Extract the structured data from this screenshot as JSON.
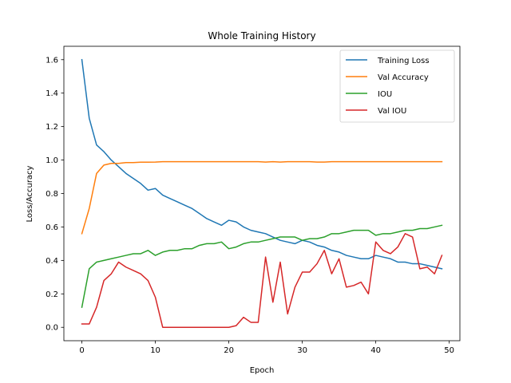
{
  "chart_data": {
    "type": "line",
    "title": "Whole Training History",
    "xlabel": "Epoch",
    "ylabel": "Loss/Accuracy",
    "xlim": [
      -2.45,
      51.45
    ],
    "ylim": [
      -0.08,
      1.68
    ],
    "xticks": [
      0,
      10,
      20,
      30,
      40,
      50
    ],
    "yticks": [
      0.0,
      0.2,
      0.4,
      0.6,
      0.8,
      1.0,
      1.2,
      1.4,
      1.6
    ],
    "grid": false,
    "legend_position": "top-right",
    "x": [
      0,
      1,
      2,
      3,
      4,
      5,
      6,
      7,
      8,
      9,
      10,
      11,
      12,
      13,
      14,
      15,
      16,
      17,
      18,
      19,
      20,
      21,
      22,
      23,
      24,
      25,
      26,
      27,
      28,
      29,
      30,
      31,
      32,
      33,
      34,
      35,
      36,
      37,
      38,
      39,
      40,
      41,
      42,
      43,
      44,
      45,
      46,
      47,
      48,
      49
    ],
    "series": [
      {
        "name": "Training Loss",
        "color": "#1f77b4",
        "values": [
          1.6,
          1.25,
          1.09,
          1.05,
          1.0,
          0.96,
          0.92,
          0.89,
          0.86,
          0.82,
          0.83,
          0.79,
          0.77,
          0.75,
          0.73,
          0.71,
          0.68,
          0.65,
          0.63,
          0.61,
          0.64,
          0.63,
          0.6,
          0.58,
          0.57,
          0.56,
          0.54,
          0.52,
          0.51,
          0.5,
          0.52,
          0.51,
          0.49,
          0.48,
          0.46,
          0.45,
          0.43,
          0.42,
          0.41,
          0.41,
          0.43,
          0.42,
          0.41,
          0.39,
          0.39,
          0.38,
          0.38,
          0.37,
          0.36,
          0.35
        ]
      },
      {
        "name": "Val Accuracy",
        "color": "#ff7f0e",
        "values": [
          0.56,
          0.71,
          0.92,
          0.97,
          0.98,
          0.98,
          0.985,
          0.985,
          0.987,
          0.987,
          0.988,
          0.99,
          0.99,
          0.99,
          0.99,
          0.99,
          0.99,
          0.99,
          0.99,
          0.99,
          0.99,
          0.99,
          0.99,
          0.99,
          0.99,
          0.988,
          0.99,
          0.988,
          0.99,
          0.99,
          0.99,
          0.99,
          0.988,
          0.988,
          0.99,
          0.99,
          0.99,
          0.99,
          0.99,
          0.99,
          0.99,
          0.99,
          0.99,
          0.99,
          0.99,
          0.99,
          0.99,
          0.99,
          0.99,
          0.99
        ]
      },
      {
        "name": "IOU",
        "color": "#2ca02c",
        "values": [
          0.12,
          0.35,
          0.39,
          0.4,
          0.41,
          0.42,
          0.43,
          0.44,
          0.44,
          0.46,
          0.43,
          0.45,
          0.46,
          0.46,
          0.47,
          0.47,
          0.49,
          0.5,
          0.5,
          0.51,
          0.47,
          0.48,
          0.5,
          0.51,
          0.51,
          0.52,
          0.53,
          0.54,
          0.54,
          0.54,
          0.52,
          0.53,
          0.53,
          0.54,
          0.56,
          0.56,
          0.57,
          0.58,
          0.58,
          0.58,
          0.55,
          0.56,
          0.56,
          0.57,
          0.58,
          0.58,
          0.59,
          0.59,
          0.6,
          0.61
        ]
      },
      {
        "name": "Val IOU",
        "color": "#d62728",
        "values": [
          0.02,
          0.02,
          0.12,
          0.28,
          0.32,
          0.39,
          0.36,
          0.34,
          0.32,
          0.28,
          0.18,
          0.0,
          0.0,
          0.0,
          0.0,
          0.0,
          0.0,
          0.0,
          0.0,
          0.0,
          0.0,
          0.01,
          0.06,
          0.03,
          0.03,
          0.42,
          0.15,
          0.39,
          0.08,
          0.24,
          0.33,
          0.33,
          0.38,
          0.46,
          0.32,
          0.41,
          0.24,
          0.25,
          0.27,
          0.2,
          0.51,
          0.46,
          0.44,
          0.48,
          0.56,
          0.54,
          0.35,
          0.36,
          0.32,
          0.43
        ]
      }
    ]
  }
}
